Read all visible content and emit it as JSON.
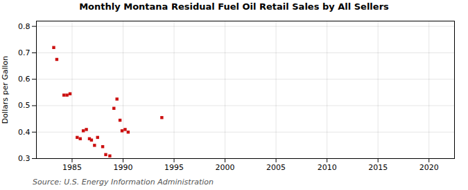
{
  "chart_data": {
    "type": "scatter",
    "title": "Monthly Montana Residual Fuel Oil Retail Sales by All Sellers",
    "ylabel": "Dollars per Gallon",
    "source": "Source: U.S. Energy Information Administration",
    "x": [
      1983.2,
      1983.5,
      1984.2,
      1984.5,
      1984.8,
      1985.5,
      1985.8,
      1986.1,
      1986.4,
      1986.7,
      1986.9,
      1987.2,
      1987.5,
      1988.0,
      1988.3,
      1988.7,
      1989.1,
      1989.4,
      1989.7,
      1989.9,
      1990.2,
      1990.5,
      1993.8
    ],
    "values": [
      0.72,
      0.675,
      0.54,
      0.54,
      0.545,
      0.38,
      0.375,
      0.405,
      0.41,
      0.375,
      0.37,
      0.35,
      0.38,
      0.345,
      0.315,
      0.31,
      0.49,
      0.525,
      0.445,
      0.405,
      0.41,
      0.4,
      0.455
    ],
    "color": "#cc1111",
    "marker": "square",
    "xlim": [
      1981.5,
      2022.5
    ],
    "ylim": [
      0.3,
      0.82
    ],
    "xticks": [
      1985,
      1990,
      1995,
      2000,
      2005,
      2010,
      2015,
      2020
    ],
    "yticks": [
      0.3,
      0.4,
      0.5,
      0.6,
      0.7,
      0.8
    ],
    "grid": true
  }
}
